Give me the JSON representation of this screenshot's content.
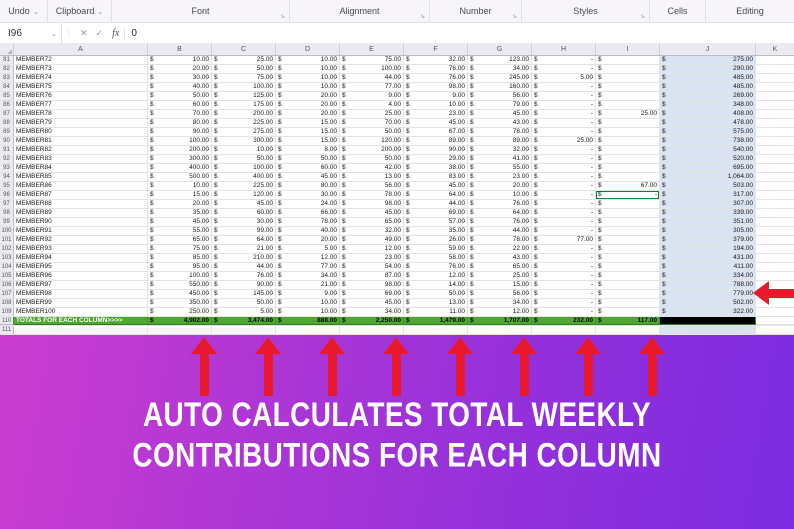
{
  "ribbon": {
    "groups": [
      {
        "label": "Undo",
        "chevron": true,
        "launcher": false
      },
      {
        "label": "Clipboard",
        "chevron": true,
        "launcher": false
      },
      {
        "label": "Font",
        "chevron": false,
        "launcher": true
      },
      {
        "label": "Alignment",
        "chevron": false,
        "launcher": true
      },
      {
        "label": "Number",
        "chevron": false,
        "launcher": true
      },
      {
        "label": "Styles",
        "chevron": false,
        "launcher": true
      },
      {
        "label": "Cells",
        "chevron": false,
        "launcher": false
      },
      {
        "label": "Editing",
        "chevron": false,
        "launcher": false
      }
    ]
  },
  "icons": {
    "chevron_down": "⌄",
    "dialog_launcher": "⇘",
    "grip": "⋮",
    "cancel": "✕",
    "enter": "✓",
    "fx": "fx"
  },
  "formula_bar": {
    "name_box": "I96",
    "value": "0"
  },
  "grid": {
    "columns": [
      "A",
      "B",
      "C",
      "D",
      "E",
      "F",
      "G",
      "H",
      "I",
      "J",
      "K"
    ],
    "rows": [
      {
        "n": 81,
        "a": "MEMBER72",
        "v": [
          "10.00",
          "25.00",
          "10.00",
          "75.00",
          "32.00",
          "123.00",
          "-",
          ""
        ],
        "j": "275.00"
      },
      {
        "n": 82,
        "a": "MEMBER73",
        "v": [
          "20.00",
          "50.00",
          "10.00",
          "100.00",
          "76.00",
          "34.00",
          "-",
          ""
        ],
        "j": "290.00"
      },
      {
        "n": 83,
        "a": "MEMBER74",
        "v": [
          "30.00",
          "75.00",
          "10.00",
          "44.00",
          "76.00",
          "245.00",
          "5.00",
          ""
        ],
        "j": "485.00"
      },
      {
        "n": 84,
        "a": "MEMBER75",
        "v": [
          "40.00",
          "100.00",
          "10.00",
          "77.00",
          "98.00",
          "160.00",
          "-",
          ""
        ],
        "j": "485.00"
      },
      {
        "n": 85,
        "a": "MEMBER76",
        "v": [
          "50.00",
          "125.00",
          "20.00",
          "9.00",
          "9.00",
          "56.00",
          "-",
          ""
        ],
        "j": "269.00"
      },
      {
        "n": 86,
        "a": "MEMBER77",
        "v": [
          "60.00",
          "175.00",
          "20.00",
          "4.00",
          "10.00",
          "79.00",
          "-",
          ""
        ],
        "j": "348.00"
      },
      {
        "n": 87,
        "a": "MEMBER78",
        "v": [
          "70.00",
          "200.00",
          "20.00",
          "25.00",
          "23.00",
          "45.00",
          "-",
          "25.00"
        ],
        "j": "408.00"
      },
      {
        "n": 88,
        "a": "MEMBER79",
        "v": [
          "80.00",
          "225.00",
          "15.00",
          "70.00",
          "45.00",
          "43.00",
          "-",
          ""
        ],
        "j": "478.00"
      },
      {
        "n": 89,
        "a": "MEMBER80",
        "v": [
          "90.00",
          "275.00",
          "15.00",
          "50.00",
          "67.00",
          "78.00",
          "-",
          ""
        ],
        "j": "575.00"
      },
      {
        "n": 90,
        "a": "MEMBER81",
        "v": [
          "100.00",
          "300.00",
          "15.00",
          "120.00",
          "89.00",
          "89.00",
          "25.00",
          ""
        ],
        "j": "738.00"
      },
      {
        "n": 91,
        "a": "MEMBER82",
        "v": [
          "200.00",
          "10.00",
          "8.00",
          "200.00",
          "90.00",
          "32.00",
          "-",
          ""
        ],
        "j": "540.00"
      },
      {
        "n": 92,
        "a": "MEMBER83",
        "v": [
          "300.00",
          "50.00",
          "50.00",
          "50.00",
          "29.00",
          "41.00",
          "-",
          ""
        ],
        "j": "520.00"
      },
      {
        "n": 93,
        "a": "MEMBER84",
        "v": [
          "400.00",
          "100.00",
          "60.00",
          "42.00",
          "38.00",
          "55.00",
          "-",
          ""
        ],
        "j": "695.00"
      },
      {
        "n": 94,
        "a": "MEMBER85",
        "v": [
          "500.00",
          "400.00",
          "45.00",
          "13.00",
          "83.00",
          "23.00",
          "-",
          ""
        ],
        "j": "1,064.00"
      },
      {
        "n": 95,
        "a": "MEMBER86",
        "v": [
          "10.00",
          "225.00",
          "80.00",
          "56.00",
          "45.00",
          "20.00",
          "-",
          "67.00"
        ],
        "j": "503.00"
      },
      {
        "n": 96,
        "a": "MEMBER87",
        "v": [
          "15.00",
          "120.00",
          "30.00",
          "78.00",
          "64.00",
          "10.00",
          "-",
          "-"
        ],
        "j": "317.00"
      },
      {
        "n": 97,
        "a": "MEMBER88",
        "v": [
          "20.00",
          "45.00",
          "24.00",
          "98.00",
          "44.00",
          "76.00",
          "-",
          ""
        ],
        "j": "307.00"
      },
      {
        "n": 98,
        "a": "MEMBER89",
        "v": [
          "35.00",
          "60.00",
          "66.00",
          "45.00",
          "69.00",
          "64.00",
          "-",
          ""
        ],
        "j": "339.00"
      },
      {
        "n": 99,
        "a": "MEMBER90",
        "v": [
          "45.00",
          "30.00",
          "78.00",
          "65.00",
          "57.00",
          "76.00",
          "-",
          ""
        ],
        "j": "351.00"
      },
      {
        "n": 100,
        "a": "MEMBER91",
        "v": [
          "55.00",
          "99.00",
          "40.00",
          "32.00",
          "35.00",
          "44.00",
          "-",
          ""
        ],
        "j": "305.00"
      },
      {
        "n": 101,
        "a": "MEMBER92",
        "v": [
          "65.00",
          "64.00",
          "20.00",
          "49.00",
          "26.00",
          "78.00",
          "77.00",
          ""
        ],
        "j": "379.00"
      },
      {
        "n": 102,
        "a": "MEMBER93",
        "v": [
          "75.00",
          "21.00",
          "5.00",
          "12.00",
          "59.00",
          "22.00",
          "-",
          ""
        ],
        "j": "194.00"
      },
      {
        "n": 103,
        "a": "MEMBER94",
        "v": [
          "85.00",
          "210.00",
          "12.00",
          "23.00",
          "58.00",
          "43.00",
          "-",
          ""
        ],
        "j": "431.00"
      },
      {
        "n": 104,
        "a": "MEMBER95",
        "v": [
          "95.00",
          "44.00",
          "77.00",
          "54.00",
          "76.00",
          "65.00",
          "-",
          ""
        ],
        "j": "411.00"
      },
      {
        "n": 105,
        "a": "MEMBER96",
        "v": [
          "100.00",
          "76.00",
          "34.00",
          "87.00",
          "12.00",
          "25.00",
          "-",
          ""
        ],
        "j": "334.00"
      },
      {
        "n": 106,
        "a": "MEMBER97",
        "v": [
          "550.00",
          "90.00",
          "21.00",
          "98.00",
          "14.00",
          "15.00",
          "-",
          ""
        ],
        "j": "788.00"
      },
      {
        "n": 107,
        "a": "MEMBER98",
        "v": [
          "450.00",
          "145.00",
          "9.00",
          "69.00",
          "50.00",
          "56.00",
          "-",
          ""
        ],
        "j": "779.00"
      },
      {
        "n": 108,
        "a": "MEMBER99",
        "v": [
          "350.00",
          "50.00",
          "10.00",
          "45.00",
          "13.00",
          "34.00",
          "-",
          ""
        ],
        "j": "502.00"
      },
      {
        "n": 109,
        "a": "MEMBER100",
        "v": [
          "250.00",
          "5.00",
          "10.00",
          "34.00",
          "11.00",
          "12.00",
          "-",
          ""
        ],
        "j": "322.00"
      }
    ],
    "totals_row": {
      "n": 110,
      "label": "TOTALS FOR EACH COLUMN>>>>",
      "v": [
        "4,902.00",
        "3,474.00",
        "888.00",
        "2,250.00",
        "1,479.00",
        "1,707.00",
        "232.00",
        "117.00"
      ]
    },
    "empty_row_n": 111,
    "currency_symbol": "$"
  },
  "banner": {
    "line1": "AUTO CALCULATES TOTAL WEEKLY",
    "line2": "CONTRIBUTIONS FOR EACH COLUMN"
  },
  "colors": {
    "totals_row_green": "#4ea72e",
    "weekly_total_fill": "#dae3f1",
    "arrow_red": "#e8192c",
    "banner_gradient_start": "#cb3ccf",
    "banner_gradient_end": "#7b2be1",
    "selected_cell_border": "#107c41"
  }
}
